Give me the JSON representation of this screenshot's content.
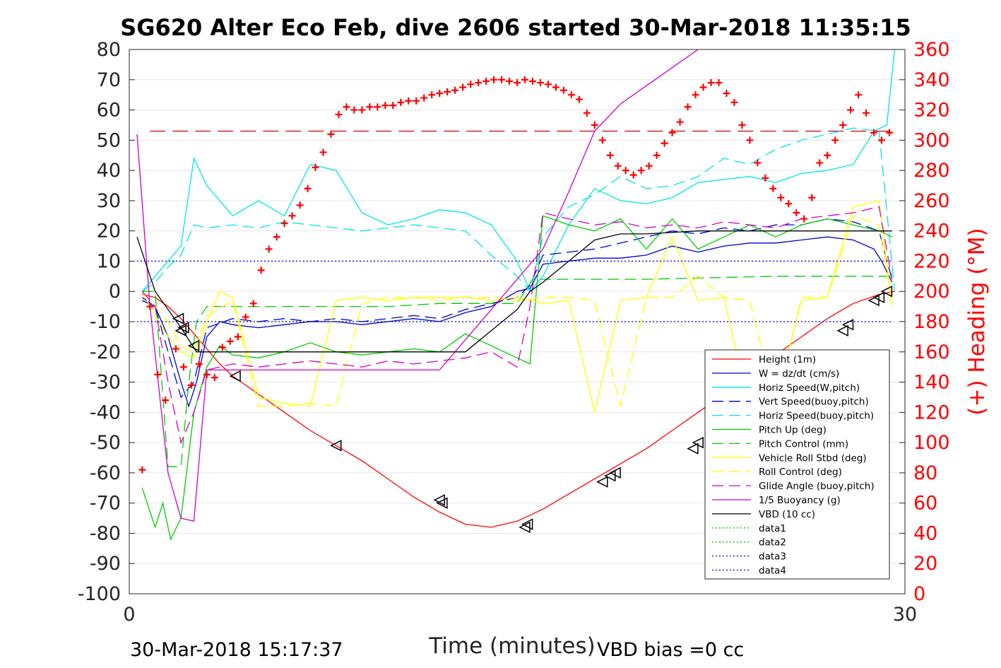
{
  "chart_data": {
    "type": "line",
    "title": "SG620 Alter Eco Feb, dive 2606 started 30-Mar-2018 11:35:15",
    "xlabel": "Time (minutes)",
    "ylabel_right": "(+) Heading (°M)",
    "xlim": [
      0,
      30
    ],
    "ylim_left": [
      -100,
      80
    ],
    "ylim_right": [
      0,
      360
    ],
    "xticks": [
      "0",
      "30"
    ],
    "yticks_left": [
      "80",
      "70",
      "60",
      "50",
      "40",
      "30",
      "20",
      "10",
      "0",
      "-10",
      "-20",
      "-30",
      "-40",
      "-50",
      "-60",
      "-70",
      "-80",
      "-90",
      "-100"
    ],
    "yticks_right": [
      "360",
      "340",
      "320",
      "300",
      "280",
      "260",
      "240",
      "220",
      "200",
      "180",
      "160",
      "140",
      "120",
      "100",
      "80",
      "60",
      "40",
      "20",
      "0"
    ],
    "grid": "horizontal",
    "legend_position": "lower-right",
    "footer_left": "30-Mar-2018 15:17:37",
    "footer_right": "VBD bias =0 cc",
    "series": [
      {
        "name": "Height (1m)",
        "color": "#ff0000",
        "style": "solid",
        "x": [
          0.5,
          1.0,
          1.5,
          2.0,
          2.5,
          3.0,
          3.5,
          4.0,
          5.0,
          6.0,
          7.0,
          8.0,
          9.0,
          10.0,
          11.0,
          12.0,
          13.0,
          14.0,
          15.0,
          16.0,
          17.0,
          18.0,
          19.0,
          20.0,
          21.0,
          22.0,
          23.0,
          24.0,
          25.0,
          26.0,
          27.0,
          28.0,
          29.0,
          29.6
        ],
        "y": [
          -1,
          -2,
          -5,
          -9,
          -14,
          -19,
          -24,
          -28,
          -34,
          -40,
          -46,
          -51,
          -56,
          -62,
          -68,
          -73,
          -77,
          -78,
          -76,
          -72,
          -67,
          -62,
          -57,
          -52,
          -46,
          -40,
          -34,
          -27,
          -21,
          -15,
          -9,
          -4,
          -1,
          0
        ]
      },
      {
        "name": "W = dz/dt (cm/s)",
        "color": "#0000cc",
        "style": "solid",
        "x": [
          0.5,
          1.0,
          1.5,
          2.0,
          2.3,
          2.6,
          3.0,
          3.5,
          4.0,
          5.0,
          6.0,
          7.0,
          8.0,
          9.0,
          10.0,
          11.0,
          12.0,
          13.0,
          14.0,
          15.0,
          15.5,
          16.0,
          17.0,
          18.0,
          19.0,
          20.0,
          21.0,
          22.0,
          23.0,
          24.0,
          25.0,
          26.0,
          27.0,
          28.0,
          28.8,
          29.1,
          29.5
        ],
        "y": [
          -3,
          -5,
          -15,
          -30,
          -38,
          -30,
          -15,
          -10,
          -11,
          -12,
          -11,
          -10,
          -10,
          -11,
          -10,
          -9,
          -10,
          -7,
          -5,
          0,
          1,
          9,
          10,
          11,
          11,
          12,
          15,
          13,
          15,
          16,
          16,
          17,
          18,
          17,
          14,
          10,
          3
        ]
      },
      {
        "name": "Horiz Speed(W,pitch)",
        "color": "#00e5e5",
        "style": "solid",
        "x": [
          0.5,
          1.0,
          1.5,
          2.0,
          2.5,
          3.0,
          3.5,
          4.0,
          5.0,
          6.0,
          7.0,
          8.0,
          9.0,
          10.0,
          11.0,
          12.0,
          13.0,
          14.0,
          15.0,
          15.5,
          16.0,
          17.0,
          18.0,
          19.0,
          20.0,
          21.0,
          22.0,
          23.0,
          24.0,
          25.0,
          26.0,
          27.0,
          28.0,
          28.8,
          29.3,
          29.6
        ],
        "y": [
          0,
          5,
          10,
          15,
          44,
          35,
          30,
          25,
          30,
          25,
          42,
          40,
          26,
          22,
          24,
          27,
          26,
          22,
          10,
          0,
          5,
          22,
          34,
          30,
          29,
          31,
          36,
          37,
          38,
          36,
          39,
          40,
          42,
          53,
          55,
          80
        ]
      },
      {
        "name": "Vert Speed(buoy,pitch)",
        "color": "#0000cc",
        "style": "dashed",
        "x": [
          0.5,
          1.0,
          1.5,
          2.0,
          2.5,
          3.0,
          4.0,
          5.0,
          6.0,
          7.0,
          8.0,
          9.0,
          10.0,
          11.0,
          12.0,
          13.0,
          14.0,
          15.0,
          15.5,
          16.0,
          17.0,
          18.0,
          19.0,
          20.0,
          21.0,
          22.0,
          23.0,
          24.0,
          25.0,
          26.0,
          27.0,
          28.0,
          29.0,
          29.5
        ],
        "y": [
          -2,
          -5,
          -20,
          -35,
          -30,
          -12,
          -9,
          -10,
          -9,
          -10,
          -9,
          -10,
          -9,
          -8,
          -9,
          -6,
          -4,
          -2,
          2,
          12,
          13,
          14,
          16,
          18,
          20,
          19,
          21,
          20,
          22,
          22,
          24,
          23,
          20,
          4
        ]
      },
      {
        "name": "Horiz Speed(buoy,pitch)",
        "color": "#00e5e5",
        "style": "dashed",
        "x": [
          0.5,
          1.0,
          1.5,
          2.0,
          2.5,
          3.0,
          4.0,
          5.0,
          6.0,
          7.0,
          8.0,
          9.0,
          10.0,
          11.0,
          12.0,
          13.0,
          14.0,
          15.0,
          15.5,
          16.0,
          17.0,
          18.0,
          19.0,
          20.0,
          21.0,
          22.0,
          23.0,
          24.0,
          25.0,
          26.0,
          27.0,
          28.0,
          29.0,
          29.6
        ],
        "y": [
          0,
          3,
          8,
          12,
          22,
          21,
          22,
          21,
          23,
          22,
          21,
          20,
          21,
          22,
          21,
          20,
          12,
          5,
          0,
          18,
          28,
          32,
          38,
          34,
          35,
          38,
          44,
          42,
          47,
          50,
          52,
          54,
          53,
          0
        ]
      },
      {
        "name": "Pitch Up (deg)",
        "color": "#00cc00",
        "style": "solid",
        "x": [
          0.5,
          1.0,
          1.3,
          1.6,
          2.0,
          2.5,
          3.0,
          3.5,
          4.0,
          5.0,
          6.0,
          7.0,
          8.0,
          9.0,
          10.0,
          11.0,
          12.0,
          13.0,
          14.0,
          15.0,
          15.5,
          16.0,
          17.0,
          18.0,
          19.0,
          20.0,
          21.0,
          22.0,
          23.0,
          24.0,
          25.0,
          26.0,
          27.0,
          28.0,
          29.0,
          29.5
        ],
        "y": [
          -65,
          -78,
          -70,
          -82,
          -75,
          -40,
          -25,
          -18,
          -21,
          -22,
          -20,
          -17,
          -20,
          -21,
          -20,
          -19,
          -20,
          -14,
          -18,
          -22,
          -24,
          25,
          22,
          20,
          24,
          14,
          24,
          14,
          18,
          22,
          18,
          22,
          24,
          22,
          20,
          18
        ]
      },
      {
        "name": "Pitch Control (mm)",
        "color": "#00cc00",
        "style": "dashed",
        "x": [
          0.5,
          1.0,
          1.5,
          2.0,
          2.3,
          2.6,
          3.0,
          4.0,
          6.0,
          8.0,
          10.0,
          12.0,
          14.0,
          15.0,
          15.3,
          15.6,
          16.0,
          20.0,
          25.0,
          29.5
        ],
        "y": [
          0,
          0,
          -58,
          -58,
          -30,
          -10,
          -5,
          -5,
          -5,
          -5,
          -5,
          -4,
          -4,
          -4,
          0,
          4,
          4,
          4,
          5,
          5
        ]
      },
      {
        "name": "Vehicle Roll Stbd (deg)",
        "color": "#ffff00",
        "style": "solid",
        "x": [
          0.5,
          1.0,
          1.5,
          2.0,
          2.5,
          3.0,
          3.5,
          4.0,
          5.0,
          6.0,
          7.0,
          8.0,
          9.0,
          10.0,
          11.0,
          12.0,
          13.0,
          14.0,
          15.0,
          16.0,
          17.0,
          18.0,
          19.0,
          20.0,
          21.0,
          22.0,
          23.0,
          24.0,
          25.0,
          26.0,
          27.0,
          28.0,
          29.0,
          29.5
        ],
        "y": [
          0,
          -8,
          -15,
          -20,
          -22,
          -10,
          0,
          -2,
          -35,
          -37,
          -38,
          -3,
          -2,
          -3,
          -2,
          -2,
          -2,
          -3,
          -2,
          -4,
          -3,
          -40,
          -3,
          -2,
          18,
          -3,
          -2,
          -40,
          -36,
          -3,
          -2,
          28,
          30,
          -5
        ]
      },
      {
        "name": "Roll Control (deg)",
        "color": "#ffff00",
        "style": "dashed",
        "x": [
          0.5,
          1.0,
          1.5,
          2.0,
          2.5,
          3.0,
          4.0,
          5.0,
          6.0,
          7.0,
          8.0,
          9.0,
          10.0,
          11.0,
          12.0,
          13.0,
          14.0,
          15.0,
          16.0,
          17.0,
          18.0,
          19.0,
          20.0,
          21.0,
          22.0,
          23.0,
          24.0,
          25.0,
          26.0,
          27.0,
          28.0,
          29.0,
          29.5
        ],
        "y": [
          0,
          -5,
          -10,
          -18,
          -20,
          -8,
          -3,
          -38,
          -38,
          -37,
          -38,
          -4,
          -2,
          -2,
          -3,
          -2,
          -2,
          -3,
          -2,
          -2,
          -3,
          -38,
          -2,
          -2,
          5,
          -2,
          -3,
          -38,
          -2,
          -2,
          25,
          22,
          -4
        ]
      },
      {
        "name": "Glide Angle (buoy,pitch)",
        "color": "#cc00cc",
        "style": "dashed",
        "x": [
          0.5,
          1.0,
          1.5,
          2.0,
          2.5,
          3.0,
          4.0,
          5.0,
          6.0,
          7.0,
          8.0,
          9.0,
          10.0,
          11.0,
          12.0,
          13.0,
          14.0,
          15.0,
          15.5,
          16.0,
          17.0,
          18.0,
          19.0,
          20.0,
          21.0,
          22.0,
          23.0,
          24.0,
          25.0,
          26.0,
          27.0,
          28.0,
          29.0,
          29.5
        ],
        "y": [
          0,
          -5,
          -30,
          -50,
          -40,
          -26,
          -24,
          -25,
          -24,
          -23,
          -24,
          -25,
          -23,
          -24,
          -23,
          -22,
          -20,
          -25,
          -5,
          26,
          24,
          22,
          23,
          21,
          22,
          21,
          23,
          22,
          21,
          24,
          25,
          26,
          28,
          4
        ]
      },
      {
        "name": "1/5 Buoyancy (g)",
        "color": "#cc00cc",
        "style": "solid",
        "x": [
          0.3,
          0.8,
          1.5,
          2.0,
          2.5,
          3.0,
          4.0,
          6.0,
          8.0,
          10.0,
          12.0,
          13.0,
          14.0,
          15.0,
          16.0,
          17.0,
          18.0,
          19.0,
          20.0,
          21.0,
          22.0
        ],
        "y": [
          52,
          -5,
          -60,
          -75,
          -76,
          -26,
          -26,
          -26,
          -26,
          -26,
          -26,
          -16,
          -6,
          4,
          14,
          33,
          53,
          62,
          68,
          74,
          80
        ]
      },
      {
        "name": "VBD (10 cc)",
        "color": "#000000",
        "style": "solid",
        "x": [
          0.3,
          1.0,
          2.0,
          2.6,
          4.0,
          6.0,
          8.0,
          10.0,
          12.0,
          13.0,
          14.0,
          15.0,
          15.5,
          16.0,
          17.0,
          18.0,
          19.0,
          20.0,
          22.0,
          24.0,
          26.0,
          28.0,
          29.5
        ],
        "y": [
          18,
          0,
          -12,
          -20,
          -20,
          -20,
          -20,
          -20,
          -20,
          -20,
          -13,
          -6,
          0,
          3,
          10,
          17,
          19,
          19,
          20,
          20,
          20,
          20,
          20
        ]
      },
      {
        "name": "data1",
        "color": "#00cc00",
        "style": "dotted",
        "x": [],
        "y": []
      },
      {
        "name": "data2",
        "color": "#00cc00",
        "style": "dotted",
        "x": [],
        "y": []
      },
      {
        "name": "data3",
        "color": "#0000cc",
        "style": "dotted",
        "x": [
          0.3,
          29.5
        ],
        "y": [
          -10,
          -10
        ]
      },
      {
        "name": "data4",
        "color": "#0000cc",
        "style": "dotted",
        "x": [
          0.3,
          29.5
        ],
        "y": [
          10,
          10
        ]
      }
    ],
    "reference_line_right": {
      "y": 306,
      "color": "#cc0000",
      "style": "dashed",
      "x": [
        0.8,
        29.5
      ]
    },
    "heading_points": {
      "axis": "right",
      "color": "#ff0000",
      "marker": "+",
      "x": [
        0.5,
        0.8,
        1.1,
        1.4,
        1.8,
        2.1,
        2.4,
        2.7,
        3.0,
        3.3,
        3.6,
        3.9,
        4.2,
        4.5,
        4.8,
        5.1,
        5.4,
        5.7,
        6.0,
        6.3,
        6.6,
        6.9,
        7.2,
        7.5,
        7.8,
        8.1,
        8.4,
        8.7,
        9.0,
        9.3,
        9.6,
        9.9,
        10.2,
        10.5,
        10.8,
        11.1,
        11.4,
        11.7,
        12.0,
        12.3,
        12.6,
        12.9,
        13.2,
        13.5,
        13.8,
        14.1,
        14.4,
        14.7,
        15.0,
        15.3,
        15.6,
        15.9,
        16.2,
        16.5,
        16.8,
        17.1,
        17.4,
        17.7,
        18.0,
        18.3,
        18.6,
        18.9,
        19.2,
        19.5,
        19.8,
        20.1,
        20.4,
        20.7,
        21.0,
        21.3,
        21.6,
        21.9,
        22.2,
        22.5,
        22.8,
        23.1,
        23.4,
        23.7,
        24.0,
        24.3,
        24.6,
        24.9,
        25.2,
        25.5,
        25.8,
        26.1,
        26.4,
        26.7,
        27.0,
        27.3,
        27.6,
        27.9,
        28.2,
        28.5,
        28.8,
        29.1,
        29.4
      ],
      "y": [
        82,
        190,
        145,
        128,
        162,
        150,
        138,
        152,
        145,
        143,
        163,
        167,
        170,
        183,
        192,
        214,
        228,
        236,
        245,
        250,
        257,
        268,
        282,
        292,
        304,
        317,
        322,
        320,
        320,
        322,
        322,
        323,
        323,
        325,
        326,
        326,
        328,
        330,
        331,
        332,
        333,
        335,
        337,
        338,
        339,
        340,
        340,
        339,
        338,
        340,
        339,
        338,
        337,
        335,
        333,
        330,
        327,
        318,
        310,
        300,
        290,
        283,
        280,
        277,
        280,
        283,
        290,
        298,
        305,
        312,
        322,
        330,
        335,
        338,
        338,
        331,
        325,
        310,
        300,
        285,
        275,
        268,
        262,
        258,
        252,
        248,
        262,
        285,
        290,
        300,
        310,
        320,
        330,
        318,
        305,
        300,
        305
      ]
    },
    "triangle_markers": {
      "x": [
        1.9,
        2.0,
        2.1,
        2.5,
        4.1,
        8.0,
        12.0,
        12.1,
        15.3,
        15.4,
        18.3,
        18.6,
        18.8,
        21.8,
        22.0,
        22.9,
        23.0,
        24.6,
        24.8,
        25.9,
        26.1,
        27.6,
        27.8,
        28.8,
        29.0,
        29.3
      ],
      "y": [
        -9,
        -13,
        -12,
        -18,
        -28,
        -51,
        -69,
        -70,
        -78,
        -77,
        -63,
        -61,
        -60,
        -52,
        -50,
        -45,
        -44,
        -34,
        -32,
        -25,
        -25,
        -13,
        -11,
        -3,
        -2,
        0
      ]
    }
  }
}
